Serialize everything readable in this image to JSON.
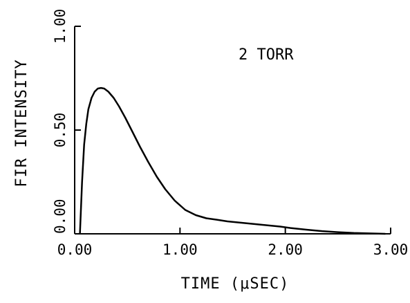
{
  "chart_data": {
    "type": "line",
    "title": "",
    "xlabel": "TIME (μSEC)",
    "ylabel": "FIR INTENSITY",
    "annotation": "2 TORR",
    "xlim": [
      0.0,
      3.0
    ],
    "ylim": [
      0.0,
      1.0
    ],
    "x_ticks": [
      0.0,
      1.0,
      2.0,
      3.0
    ],
    "x_tick_labels": [
      "0.00",
      "1.00",
      "2.00",
      "3.00"
    ],
    "y_ticks": [
      0.0,
      0.5,
      1.0
    ],
    "y_tick_labels": [
      "0.00",
      "0.50",
      "1.00"
    ],
    "grid": false,
    "series": [
      {
        "x": [
          0.05,
          0.07,
          0.09,
          0.11,
          0.13,
          0.16,
          0.19,
          0.22,
          0.25,
          0.28,
          0.32,
          0.37,
          0.42,
          0.48,
          0.55,
          0.62,
          0.7,
          0.78,
          0.86,
          0.95,
          1.05,
          1.15,
          1.25,
          1.35,
          1.45,
          1.55,
          1.65,
          1.75,
          1.85,
          1.95,
          2.05,
          2.2,
          2.35,
          2.5,
          2.65,
          2.8,
          2.95
        ],
        "y": [
          0.0,
          0.25,
          0.43,
          0.53,
          0.6,
          0.655,
          0.685,
          0.7,
          0.703,
          0.7,
          0.685,
          0.655,
          0.615,
          0.56,
          0.49,
          0.42,
          0.345,
          0.275,
          0.215,
          0.16,
          0.115,
          0.09,
          0.075,
          0.068,
          0.06,
          0.055,
          0.05,
          0.045,
          0.04,
          0.035,
          0.028,
          0.02,
          0.013,
          0.008,
          0.004,
          0.002,
          0.0
        ]
      }
    ]
  }
}
